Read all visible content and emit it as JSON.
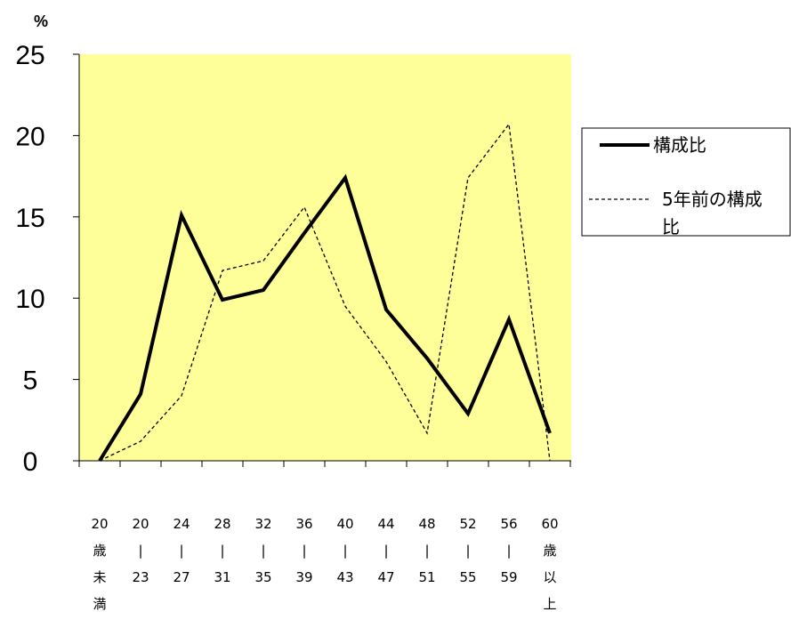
{
  "chart_data": {
    "type": "line",
    "unit_label": "%",
    "ylim": [
      0,
      25
    ],
    "yticks": [
      "0",
      "5",
      "10",
      "15",
      "20",
      "25"
    ],
    "categories": [
      [
        "20",
        "歳",
        "未",
        "満"
      ],
      [
        "20",
        "|",
        "23"
      ],
      [
        "24",
        "|",
        "27"
      ],
      [
        "28",
        "|",
        "31"
      ],
      [
        "32",
        "|",
        "35"
      ],
      [
        "36",
        "|",
        "39"
      ],
      [
        "40",
        "|",
        "43"
      ],
      [
        "44",
        "|",
        "47"
      ],
      [
        "48",
        "|",
        "51"
      ],
      [
        "52",
        "|",
        "55"
      ],
      [
        "56",
        "|",
        "59"
      ],
      [
        "60",
        "歳",
        "以",
        "上"
      ]
    ],
    "series": [
      {
        "name": "構成比",
        "style": "solid",
        "values": [
          0.0,
          4.1,
          15.1,
          9.9,
          10.5,
          14.0,
          17.4,
          9.3,
          6.3,
          2.9,
          8.7,
          1.7
        ]
      },
      {
        "name": "5年前の構成比",
        "style": "dashed",
        "values": [
          0.0,
          1.2,
          4.0,
          11.7,
          12.3,
          15.6,
          9.5,
          6.1,
          1.7,
          17.4,
          20.7,
          0.0
        ]
      }
    ],
    "legend_position": "right",
    "plot_background": "#ffff99",
    "legend": {
      "line1": "構成比",
      "line2a": "5年前の構成",
      "line2b": "比"
    }
  }
}
